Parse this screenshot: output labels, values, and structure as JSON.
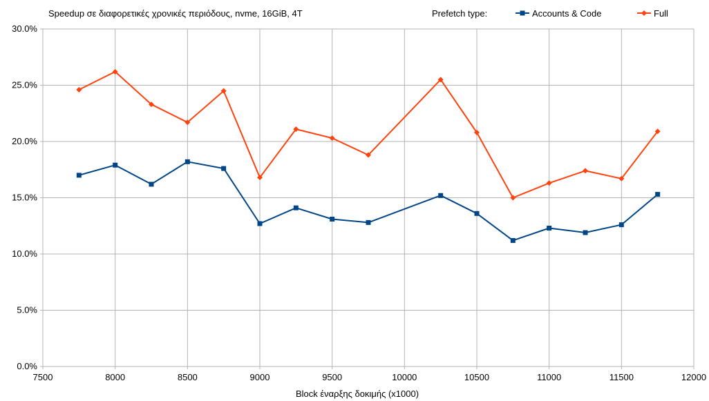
{
  "chart_data": {
    "type": "line",
    "title": "Speedup σε διαφορετικές χρονικές περιόδους, nvme, 16GiB, 4T",
    "xlabel": "Block έναρξης δοκιμής (x1000)",
    "ylabel": "",
    "legend_title": "Prefetch type:",
    "legend_position": "top-right",
    "xlim": [
      7500,
      12000
    ],
    "ylim": [
      0,
      0.3
    ],
    "grid": true,
    "x_ticks": [
      "7500",
      "8000",
      "8500",
      "9000",
      "9500",
      "10000",
      "10500",
      "11000",
      "11500",
      "12000"
    ],
    "y_ticks": [
      "0.0%",
      "5.0%",
      "10.0%",
      "15.0%",
      "20.0%",
      "25.0%",
      "30.0%"
    ],
    "x": [
      7750,
      8000,
      8250,
      8500,
      8750,
      9000,
      9250,
      9500,
      9750,
      10250,
      10500,
      10750,
      11000,
      11250,
      11500,
      11750
    ],
    "series": [
      {
        "name": "Accounts & Code",
        "color": "#004586",
        "marker": "square",
        "values": [
          0.17,
          0.179,
          0.162,
          0.182,
          0.176,
          0.127,
          0.141,
          0.131,
          0.128,
          0.152,
          0.136,
          0.112,
          0.123,
          0.119,
          0.126,
          0.153
        ]
      },
      {
        "name": "Full",
        "color": "#ff420e",
        "marker": "diamond",
        "values": [
          0.246,
          0.262,
          0.233,
          0.217,
          0.245,
          0.168,
          0.211,
          0.203,
          0.188,
          0.255,
          0.208,
          0.15,
          0.163,
          0.174,
          0.167,
          0.209
        ]
      }
    ]
  }
}
